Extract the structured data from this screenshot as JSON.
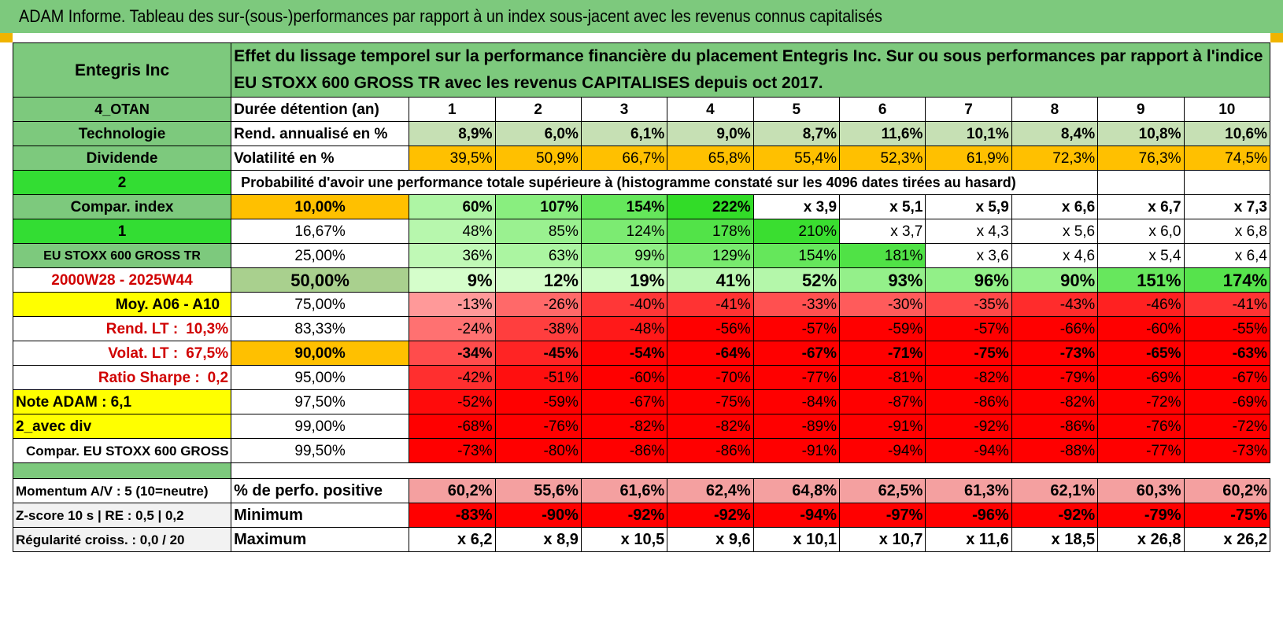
{
  "title": "ADAM Informe. Tableau des sur-(sous-)performances par rapport à un index sous-jacent avec les revenus connus capitalisés",
  "company": "Entegris Inc",
  "heading": "Effet du lissage temporel sur la performance financière du placement Entegris Inc. Sur ou sous performances par rapport à l'indice EU STOXX 600 GROSS TR avec les revenus CAPITALISES depuis oct 2017.",
  "left": {
    "otan": "4_OTAN",
    "sector": "Technologie",
    "dividende": "Dividende",
    "two": "2",
    "compar_index": "Compar. index",
    "one": "1",
    "index_name": "EU STOXX 600 GROSS TR",
    "period": "2000W28 - 2025W44",
    "moy": "Moy. A06 - A10",
    "rend_lt_label": "Rend. LT :",
    "rend_lt_value": "10,3%",
    "volat_lt_label": "Volat. LT :",
    "volat_lt_value": "67,5%",
    "sharpe_label": "Ratio Sharpe :",
    "sharpe_value": "0,2",
    "note": "Note ADAM : 6,1",
    "avec_div": "2_avec div",
    "compar_full": "Compar. EU STOXX 600 GROSS TR"
  },
  "labels": {
    "duree": "Durée détention (an)",
    "rend": "Rend. annualisé en %",
    "volat": "Volatilité en %",
    "proba": "Probabilité d'avoir une performance totale supérieure à (histogramme constaté sur les 4096 dates tirées au hasard)"
  },
  "years": [
    "1",
    "2",
    "3",
    "4",
    "5",
    "6",
    "7",
    "8",
    "9",
    "10"
  ],
  "rend": [
    "8,9%",
    "6,0%",
    "6,1%",
    "9,0%",
    "8,7%",
    "11,6%",
    "10,1%",
    "8,4%",
    "10,8%",
    "10,6%"
  ],
  "volat": [
    "39,5%",
    "50,9%",
    "66,7%",
    "65,8%",
    "55,4%",
    "52,3%",
    "61,9%",
    "72,3%",
    "76,3%",
    "74,5%"
  ],
  "prob_rows": [
    {
      "pct": "10,00%",
      "vals": [
        "60%",
        "107%",
        "154%",
        "222%",
        "x 3,9",
        "x 5,1",
        "x 5,9",
        "x 6,6",
        "x 6,7",
        "x 7,3"
      ]
    },
    {
      "pct": "16,67%",
      "vals": [
        "48%",
        "85%",
        "124%",
        "178%",
        "210%",
        "x 3,7",
        "x 4,3",
        "x 5,6",
        "x 6,0",
        "x 6,8"
      ]
    },
    {
      "pct": "25,00%",
      "vals": [
        "36%",
        "63%",
        "99%",
        "129%",
        "154%",
        "181%",
        "x 3,6",
        "x 4,6",
        "x 5,4",
        "x 6,4"
      ]
    },
    {
      "pct": "50,00%",
      "vals": [
        "9%",
        "12%",
        "19%",
        "41%",
        "52%",
        "93%",
        "96%",
        "90%",
        "151%",
        "174%"
      ]
    },
    {
      "pct": "75,00%",
      "vals": [
        "-13%",
        "-26%",
        "-40%",
        "-41%",
        "-33%",
        "-30%",
        "-35%",
        "-43%",
        "-46%",
        "-41%"
      ]
    },
    {
      "pct": "83,33%",
      "vals": [
        "-24%",
        "-38%",
        "-48%",
        "-56%",
        "-57%",
        "-59%",
        "-57%",
        "-66%",
        "-60%",
        "-55%"
      ]
    },
    {
      "pct": "90,00%",
      "vals": [
        "-34%",
        "-45%",
        "-54%",
        "-64%",
        "-67%",
        "-71%",
        "-75%",
        "-73%",
        "-65%",
        "-63%"
      ]
    },
    {
      "pct": "95,00%",
      "vals": [
        "-42%",
        "-51%",
        "-60%",
        "-70%",
        "-77%",
        "-81%",
        "-82%",
        "-79%",
        "-69%",
        "-67%"
      ]
    },
    {
      "pct": "97,50%",
      "vals": [
        "-52%",
        "-59%",
        "-67%",
        "-75%",
        "-84%",
        "-87%",
        "-86%",
        "-82%",
        "-72%",
        "-69%"
      ]
    },
    {
      "pct": "99,00%",
      "vals": [
        "-68%",
        "-76%",
        "-82%",
        "-82%",
        "-89%",
        "-91%",
        "-92%",
        "-86%",
        "-76%",
        "-72%"
      ]
    },
    {
      "pct": "99,50%",
      "vals": [
        "-73%",
        "-80%",
        "-86%",
        "-86%",
        "-91%",
        "-94%",
        "-94%",
        "-88%",
        "-77%",
        "-73%"
      ]
    }
  ],
  "bottom": [
    {
      "left": "Momentum A/V : 5 (10=neutre)",
      "label": "% de perfo. positive",
      "vals": [
        "60,2%",
        "55,6%",
        "61,6%",
        "62,4%",
        "64,8%",
        "62,5%",
        "61,3%",
        "62,1%",
        "60,3%",
        "60,2%"
      ]
    },
    {
      "left": "Z-score 10 s | RE : 0,5 | 0,2",
      "label": "Minimum",
      "vals": [
        "-83%",
        "-90%",
        "-92%",
        "-92%",
        "-94%",
        "-97%",
        "-96%",
        "-92%",
        "-79%",
        "-75%"
      ]
    },
    {
      "left": "Régularité croiss. : 0,0 / 20",
      "label": "Maximum",
      "vals": [
        "x 6,2",
        "x 8,9",
        "x 10,5",
        "x 9,6",
        "x 10,1",
        "x 10,7",
        "x 11,6",
        "x 18,5",
        "x 26,8",
        "x 26,2"
      ]
    }
  ],
  "colors": {
    "header_green": "#7dc97d",
    "bright_green": "#33dd33",
    "yellow": "#ffff00",
    "orange": "#ffc000",
    "red_text": "#d00000",
    "rend_bg": "#c6e0b4",
    "volat_bg": "#ffc000",
    "pos_bottom_bg": "#f4a0a0",
    "min_bg": "#ff0000"
  }
}
